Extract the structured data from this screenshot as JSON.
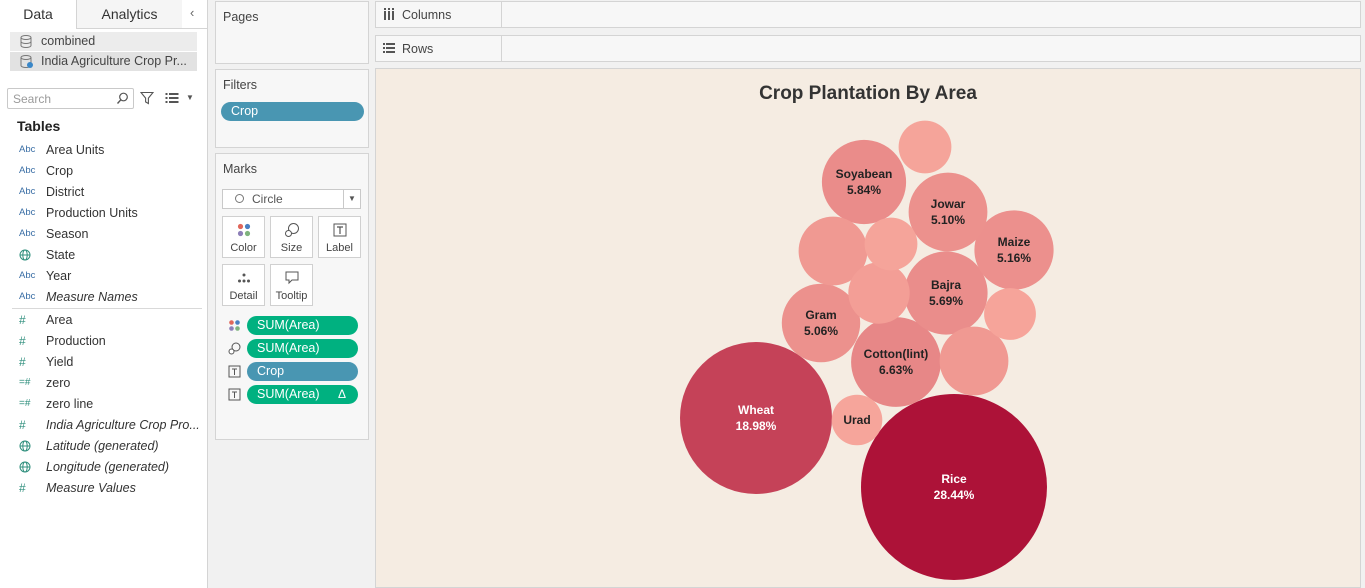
{
  "left_pane": {
    "tabs": [
      "Data",
      "Analytics"
    ],
    "data_sources": [
      "combined",
      "India Agriculture Crop Pr..."
    ],
    "search_placeholder": "Search",
    "tables_title": "Tables",
    "fields": [
      {
        "type": "Abc",
        "name": "Area Units"
      },
      {
        "type": "Abc",
        "name": "Crop"
      },
      {
        "type": "Abc",
        "name": "District"
      },
      {
        "type": "Abc",
        "name": "Production Units"
      },
      {
        "type": "Abc",
        "name": "Season"
      },
      {
        "type": "globe",
        "name": "State"
      },
      {
        "type": "Abc",
        "name": "Year"
      },
      {
        "type": "Abc",
        "name": "Measure Names"
      },
      {
        "type": "#",
        "name": "Area"
      },
      {
        "type": "#",
        "name": "Production"
      },
      {
        "type": "#",
        "name": "Yield"
      },
      {
        "type": "=#",
        "name": "zero"
      },
      {
        "type": "=#",
        "name": "zero line"
      },
      {
        "type": "#",
        "name": "India Agriculture Crop Pro..."
      },
      {
        "type": "globe",
        "name": "Latitude (generated)"
      },
      {
        "type": "globe",
        "name": "Longitude (generated)"
      },
      {
        "type": "#",
        "name": "Measure Values"
      }
    ]
  },
  "shelves": {
    "pages": "Pages",
    "filters": "Filters",
    "filter_pill": "Crop",
    "marks": "Marks",
    "mark_type": "Circle",
    "mark_buttons": [
      "Color",
      "Size",
      "Label",
      "Detail",
      "Tooltip"
    ],
    "mark_pills": [
      "SUM(Area)",
      "SUM(Area)",
      "Crop",
      "SUM(Area)"
    ],
    "delta_symbol": "Δ",
    "columns": "Columns",
    "rows": "Rows"
  },
  "colors": {
    "pill_blue": "#4996b2",
    "pill_green": "#00b180",
    "canvas_bg": "#f5ece2"
  },
  "chart_data": {
    "type": "bubble",
    "title": "Crop Plantation By Area",
    "unit": "%",
    "series": [
      {
        "name": "Rice",
        "value": 28.44,
        "label": "28.44%"
      },
      {
        "name": "Wheat",
        "value": 18.98,
        "label": "18.98%"
      },
      {
        "name": "Cotton(lint)",
        "value": 6.63,
        "label": "6.63%"
      },
      {
        "name": "Soyabean",
        "value": 5.84,
        "label": "5.84%"
      },
      {
        "name": "Bajra",
        "value": 5.69,
        "label": "5.69%"
      },
      {
        "name": "Maize",
        "value": 5.16,
        "label": "5.16%"
      },
      {
        "name": "Jowar",
        "value": 5.1,
        "label": "5.10%"
      },
      {
        "name": "Gram",
        "value": 5.06,
        "label": "5.06%"
      },
      {
        "name": "Urad",
        "value": 2.1,
        "label": ""
      },
      {
        "name": "",
        "value": 3.9,
        "label": ""
      },
      {
        "name": "",
        "value": 3.9,
        "label": ""
      },
      {
        "name": "",
        "value": 3.1,
        "label": ""
      },
      {
        "name": "",
        "value": 2.3,
        "label": ""
      },
      {
        "name": "",
        "value": 2.3,
        "label": ""
      },
      {
        "name": "",
        "value": 2.2,
        "label": ""
      }
    ]
  }
}
